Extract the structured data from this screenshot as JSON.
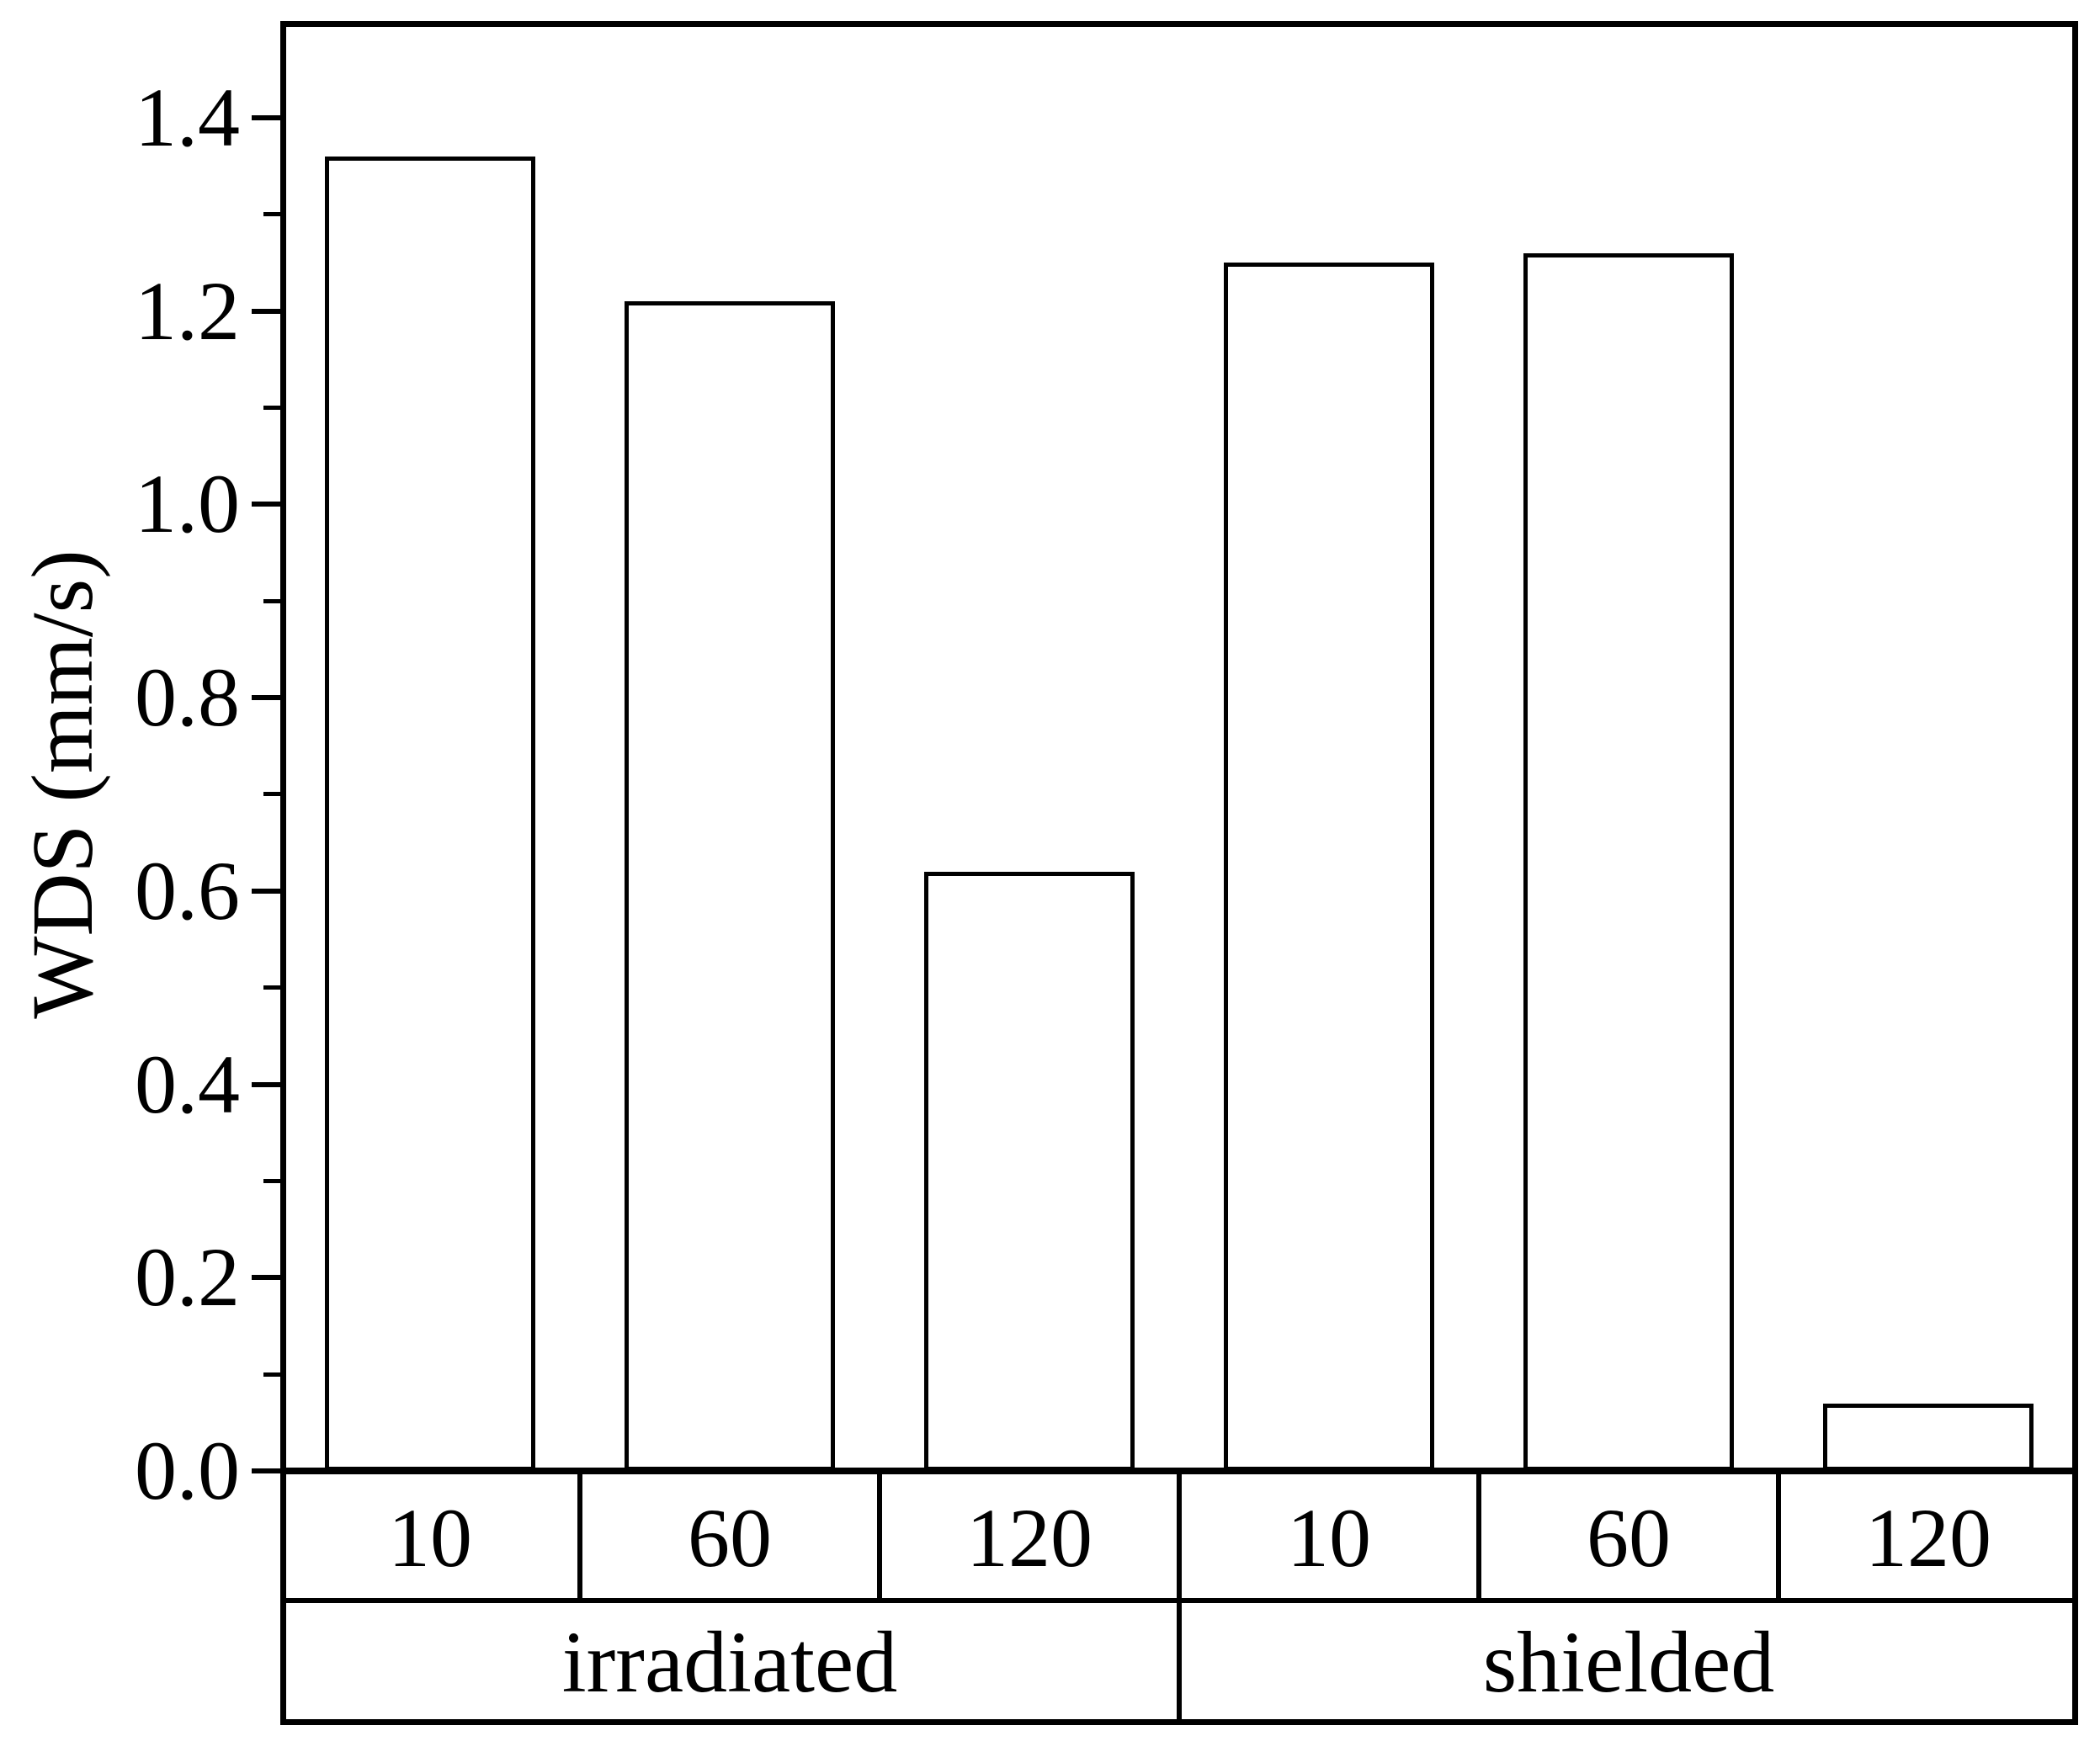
{
  "figure": {
    "background": "#ffffff",
    "line_color": "#000000",
    "bar_fill": "#ffffff",
    "bar_border": "#000000"
  },
  "chart_data": {
    "type": "bar",
    "title": "",
    "xlabel": "",
    "ylabel": "WDS (mm/s)",
    "ylim": [
      0,
      1.5
    ],
    "ytick_labels": [
      "0.0",
      "0.2",
      "0.4",
      "0.6",
      "0.8",
      "1.0",
      "1.2",
      "1.4"
    ],
    "ytick_step": 0.2,
    "minor_tick_step": 0.1,
    "grid": false,
    "legend_position": "none",
    "categories": [
      "10",
      "60",
      "120",
      "10",
      "60",
      "120"
    ],
    "groups": [
      {
        "label": "irradiated",
        "categories": [
          "10",
          "60",
          "120"
        ],
        "values": [
          1.36,
          1.21,
          0.62
        ]
      },
      {
        "label": "shielded",
        "categories": [
          "10",
          "60",
          "120"
        ],
        "values": [
          1.25,
          1.26,
          0.07
        ]
      }
    ]
  }
}
